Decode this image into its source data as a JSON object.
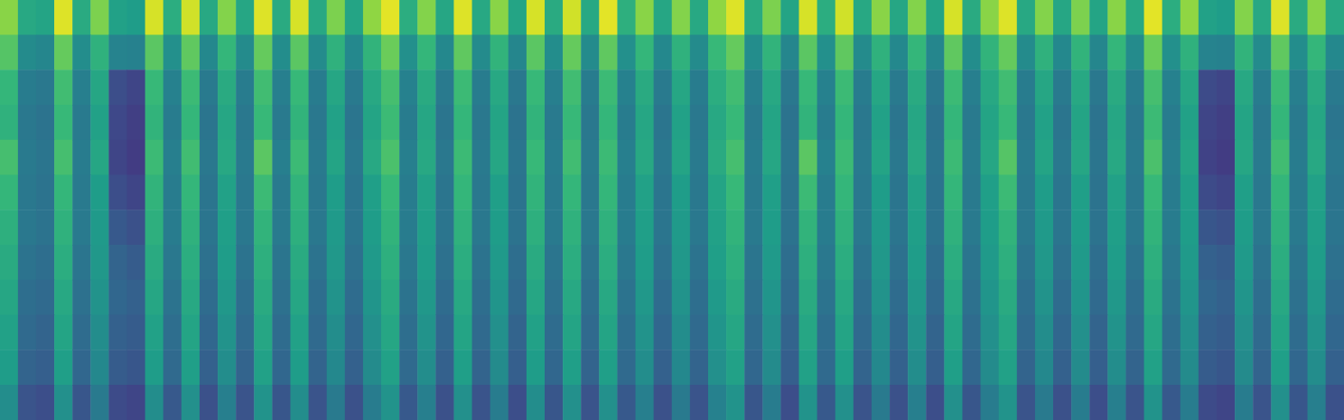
{
  "chart_data": {
    "type": "heatmap",
    "tick_labels": false,
    "color": "viridis",
    "value_range": [
      0,
      100
    ],
    "cells": [
      [
        82,
        60,
        58,
        95,
        61,
        80,
        57,
        55,
        94,
        62,
        93,
        60,
        81,
        59,
        95,
        61,
        94,
        60,
        80,
        58,
        83,
        96,
        62,
        81,
        59,
        95,
        60,
        82,
        58,
        94,
        61,
        93,
        60,
        96,
        63,
        82,
        59,
        81,
        60,
        83,
        95,
        61,
        80,
        58,
        94,
        62,
        93,
        60,
        82,
        59,
        81,
        58,
        94,
        61,
        82,
        95,
        60,
        81,
        59,
        80,
        58,
        82,
        60,
        96,
        62,
        83,
        57,
        55,
        81,
        60,
        95,
        61,
        82,
        60
      ],
      [
        73,
        48,
        46,
        76,
        49,
        64,
        45,
        44,
        74,
        50,
        75,
        47,
        66,
        48,
        76,
        49,
        74,
        48,
        64,
        47,
        65,
        77,
        50,
        66,
        47,
        75,
        48,
        65,
        46,
        74,
        49,
        76,
        48,
        75,
        50,
        66,
        47,
        64,
        48,
        67,
        76,
        49,
        65,
        46,
        74,
        50,
        75,
        48,
        64,
        47,
        66,
        46,
        75,
        49,
        65,
        76,
        48,
        64,
        47,
        65,
        46,
        66,
        48,
        77,
        50,
        64,
        45,
        44,
        65,
        48,
        75,
        49,
        66,
        47
      ],
      [
        66,
        42,
        40,
        69,
        43,
        59,
        24,
        21,
        67,
        44,
        68,
        41,
        61,
        42,
        69,
        43,
        67,
        42,
        59,
        41,
        60,
        70,
        44,
        61,
        41,
        68,
        42,
        60,
        40,
        67,
        43,
        69,
        42,
        68,
        44,
        61,
        41,
        59,
        42,
        62,
        69,
        43,
        60,
        40,
        67,
        44,
        68,
        42,
        59,
        41,
        61,
        40,
        68,
        43,
        60,
        69,
        42,
        59,
        41,
        60,
        40,
        61,
        42,
        70,
        44,
        59,
        23,
        21,
        60,
        42,
        68,
        43,
        61,
        41
      ],
      [
        64,
        40,
        38,
        67,
        41,
        57,
        22,
        19,
        65,
        42,
        66,
        39,
        59,
        40,
        67,
        41,
        65,
        40,
        57,
        39,
        58,
        68,
        42,
        59,
        39,
        66,
        40,
        58,
        38,
        65,
        41,
        67,
        40,
        66,
        42,
        59,
        39,
        57,
        40,
        60,
        67,
        41,
        58,
        38,
        65,
        42,
        66,
        40,
        57,
        39,
        59,
        38,
        66,
        41,
        58,
        67,
        40,
        57,
        39,
        58,
        38,
        59,
        40,
        68,
        42,
        57,
        21,
        19,
        58,
        40,
        66,
        41,
        59,
        39
      ],
      [
        70,
        41,
        39,
        70,
        42,
        59,
        21,
        18,
        68,
        43,
        69,
        40,
        60,
        41,
        74,
        43,
        68,
        41,
        58,
        40,
        60,
        71,
        43,
        60,
        40,
        68,
        41,
        59,
        39,
        67,
        42,
        69,
        41,
        68,
        43,
        60,
        40,
        58,
        41,
        61,
        70,
        42,
        59,
        39,
        74,
        44,
        68,
        41,
        58,
        40,
        60,
        39,
        68,
        42,
        59,
        73,
        41,
        58,
        40,
        59,
        39,
        60,
        41,
        71,
        43,
        58,
        20,
        18,
        59,
        41,
        69,
        42,
        60,
        40
      ],
      [
        66,
        40,
        38,
        66,
        41,
        55,
        24,
        21,
        65,
        42,
        66,
        39,
        57,
        40,
        68,
        41,
        65,
        40,
        55,
        39,
        56,
        67,
        42,
        57,
        39,
        66,
        40,
        56,
        38,
        65,
        41,
        66,
        40,
        66,
        42,
        57,
        39,
        55,
        40,
        58,
        67,
        41,
        56,
        38,
        68,
        42,
        66,
        40,
        55,
        39,
        57,
        38,
        66,
        41,
        56,
        68,
        40,
        55,
        39,
        56,
        38,
        57,
        40,
        67,
        42,
        56,
        23,
        21,
        56,
        40,
        66,
        41,
        57,
        39
      ],
      [
        63,
        40,
        38,
        64,
        41,
        54,
        28,
        25,
        63,
        42,
        64,
        39,
        56,
        40,
        65,
        41,
        63,
        40,
        54,
        39,
        55,
        65,
        42,
        56,
        39,
        64,
        40,
        55,
        38,
        63,
        41,
        64,
        40,
        64,
        42,
        56,
        39,
        54,
        40,
        57,
        65,
        41,
        55,
        38,
        65,
        42,
        64,
        40,
        54,
        39,
        56,
        38,
        64,
        41,
        55,
        65,
        40,
        54,
        39,
        55,
        38,
        56,
        40,
        65,
        42,
        55,
        27,
        25,
        55,
        40,
        64,
        41,
        56,
        39
      ],
      [
        61,
        38,
        36,
        62,
        39,
        53,
        32,
        29,
        61,
        40,
        62,
        37,
        55,
        38,
        63,
        39,
        61,
        38,
        53,
        37,
        54,
        63,
        40,
        55,
        37,
        62,
        38,
        54,
        36,
        61,
        39,
        62,
        38,
        62,
        40,
        55,
        37,
        53,
        38,
        56,
        63,
        39,
        54,
        36,
        63,
        40,
        62,
        38,
        53,
        37,
        55,
        36,
        62,
        39,
        54,
        63,
        38,
        53,
        37,
        54,
        36,
        55,
        38,
        63,
        40,
        54,
        31,
        29,
        54,
        38,
        62,
        39,
        55,
        37
      ],
      [
        59,
        36,
        34,
        60,
        37,
        51,
        33,
        31,
        59,
        38,
        60,
        35,
        53,
        36,
        61,
        37,
        59,
        36,
        51,
        35,
        52,
        61,
        38,
        53,
        35,
        60,
        36,
        52,
        34,
        59,
        37,
        60,
        36,
        60,
        38,
        53,
        35,
        51,
        36,
        54,
        61,
        37,
        52,
        34,
        61,
        38,
        60,
        36,
        51,
        35,
        53,
        34,
        60,
        37,
        52,
        61,
        36,
        51,
        35,
        52,
        34,
        53,
        36,
        61,
        38,
        52,
        33,
        31,
        52,
        36,
        60,
        37,
        53,
        35
      ],
      [
        57,
        34,
        32,
        58,
        35,
        49,
        31,
        29,
        57,
        36,
        58,
        33,
        51,
        34,
        59,
        35,
        57,
        34,
        49,
        33,
        50,
        59,
        36,
        51,
        33,
        58,
        34,
        50,
        32,
        57,
        35,
        58,
        34,
        58,
        36,
        51,
        33,
        49,
        34,
        52,
        59,
        35,
        50,
        32,
        59,
        36,
        58,
        34,
        49,
        33,
        51,
        32,
        58,
        35,
        50,
        59,
        34,
        49,
        33,
        50,
        32,
        51,
        34,
        59,
        36,
        50,
        31,
        29,
        50,
        34,
        58,
        35,
        51,
        33
      ],
      [
        55,
        32,
        30,
        56,
        33,
        47,
        29,
        27,
        55,
        34,
        56,
        31,
        49,
        32,
        57,
        33,
        55,
        32,
        47,
        31,
        48,
        57,
        34,
        49,
        31,
        56,
        32,
        48,
        30,
        55,
        33,
        56,
        32,
        56,
        34,
        49,
        31,
        47,
        32,
        50,
        57,
        33,
        48,
        30,
        57,
        34,
        56,
        32,
        47,
        31,
        49,
        30,
        56,
        33,
        48,
        57,
        32,
        47,
        31,
        48,
        30,
        49,
        32,
        57,
        34,
        48,
        29,
        27,
        48,
        32,
        56,
        33,
        49,
        31
      ],
      [
        49,
        26,
        24,
        50,
        27,
        41,
        23,
        21,
        49,
        28,
        50,
        25,
        43,
        26,
        51,
        27,
        49,
        26,
        41,
        25,
        42,
        51,
        28,
        43,
        25,
        50,
        26,
        42,
        24,
        49,
        27,
        50,
        26,
        50,
        28,
        43,
        25,
        41,
        26,
        44,
        51,
        27,
        42,
        24,
        51,
        28,
        50,
        26,
        41,
        25,
        43,
        24,
        50,
        27,
        42,
        51,
        26,
        41,
        25,
        42,
        24,
        43,
        26,
        51,
        28,
        42,
        23,
        21,
        42,
        26,
        50,
        27,
        43,
        25
      ]
    ]
  }
}
